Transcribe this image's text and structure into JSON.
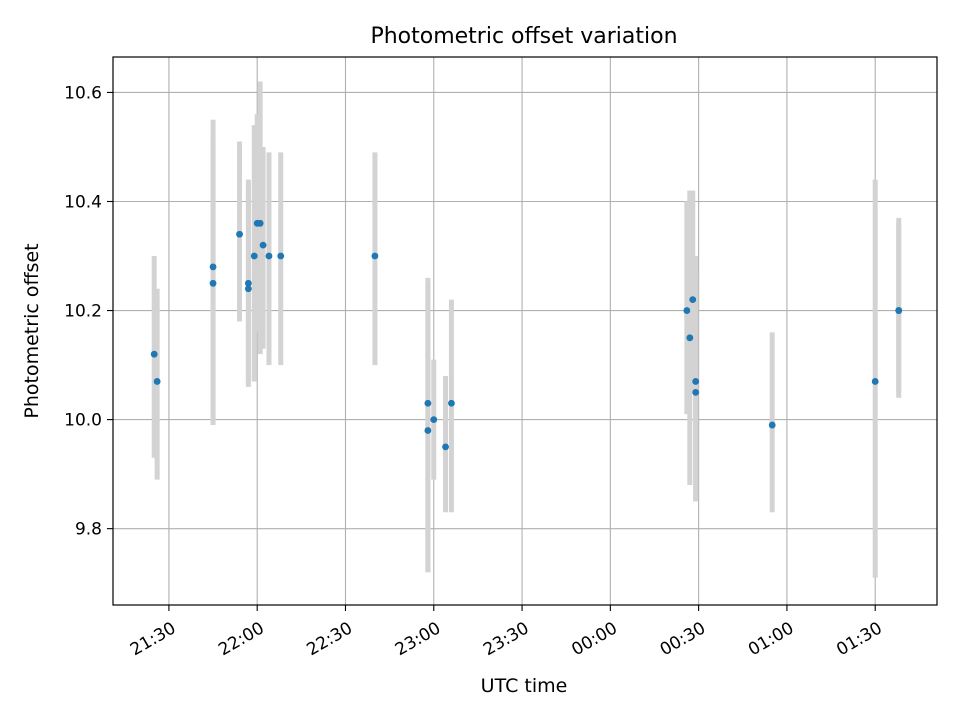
{
  "chart_data": {
    "type": "scatter",
    "title": "Photometric offset variation",
    "xlabel": "UTC time",
    "ylabel": "Photometric offset",
    "x_axis": "time",
    "xlim": [
      "21:11",
      "01:51"
    ],
    "ylim": [
      9.66,
      10.665
    ],
    "grid": true,
    "x_ticks": [
      "21:30",
      "22:00",
      "22:30",
      "23:00",
      "23:30",
      "00:00",
      "00:30",
      "01:00",
      "01:30"
    ],
    "y_ticks": [
      "9.8",
      "10.0",
      "10.2",
      "10.4",
      "10.6"
    ],
    "colors": {
      "points": "#1f77b4",
      "error_bars": "#d3d3d3",
      "grid": "#b0b0b0"
    },
    "series": [
      {
        "points": [
          {
            "x": "21:25",
            "y": 10.12,
            "ylo": 9.93,
            "yhi": 10.3
          },
          {
            "x": "21:26",
            "y": 10.07,
            "ylo": 9.89,
            "yhi": 10.24
          },
          {
            "x": "21:45",
            "y": 10.28,
            "ylo": 10.0,
            "yhi": 10.55
          },
          {
            "x": "21:45",
            "y": 10.25,
            "ylo": 9.99,
            "yhi": 10.51
          },
          {
            "x": "21:54",
            "y": 10.34,
            "ylo": 10.18,
            "yhi": 10.51
          },
          {
            "x": "21:57",
            "y": 10.24,
            "ylo": 10.06,
            "yhi": 10.43
          },
          {
            "x": "21:57",
            "y": 10.25,
            "ylo": 10.07,
            "yhi": 10.44
          },
          {
            "x": "21:59",
            "y": 10.3,
            "ylo": 10.07,
            "yhi": 10.54
          },
          {
            "x": "22:00",
            "y": 10.36,
            "ylo": 10.16,
            "yhi": 10.56
          },
          {
            "x": "22:01",
            "y": 10.36,
            "ylo": 10.12,
            "yhi": 10.62
          },
          {
            "x": "22:02",
            "y": 10.32,
            "ylo": 10.13,
            "yhi": 10.5
          },
          {
            "x": "22:04",
            "y": 10.3,
            "ylo": 10.1,
            "yhi": 10.49
          },
          {
            "x": "22:08",
            "y": 10.3,
            "ylo": 10.1,
            "yhi": 10.49
          },
          {
            "x": "22:40",
            "y": 10.3,
            "ylo": 10.1,
            "yhi": 10.49
          },
          {
            "x": "22:58",
            "y": 10.03,
            "ylo": 9.72,
            "yhi": 10.26
          },
          {
            "x": "22:58",
            "y": 9.98,
            "ylo": 9.72,
            "yhi": 10.25
          },
          {
            "x": "23:00",
            "y": 10.0,
            "ylo": 9.89,
            "yhi": 10.11
          },
          {
            "x": "23:04",
            "y": 9.95,
            "ylo": 9.83,
            "yhi": 10.08
          },
          {
            "x": "23:06",
            "y": 10.03,
            "ylo": 9.83,
            "yhi": 10.22
          },
          {
            "x": "00:26",
            "y": 10.2,
            "ylo": 10.01,
            "yhi": 10.4
          },
          {
            "x": "00:27",
            "y": 10.15,
            "ylo": 9.88,
            "yhi": 10.42
          },
          {
            "x": "00:28",
            "y": 10.22,
            "ylo": 10.05,
            "yhi": 10.42
          },
          {
            "x": "00:29",
            "y": 10.07,
            "ylo": 9.85,
            "yhi": 10.3
          },
          {
            "x": "00:29",
            "y": 10.05,
            "ylo": 9.85,
            "yhi": 10.26
          },
          {
            "x": "00:55",
            "y": 9.99,
            "ylo": 9.83,
            "yhi": 10.16
          },
          {
            "x": "01:30",
            "y": 10.07,
            "ylo": 9.71,
            "yhi": 10.44
          },
          {
            "x": "01:38",
            "y": 10.2,
            "ylo": 10.04,
            "yhi": 10.37
          },
          {
            "x": "01:38",
            "y": 10.2,
            "ylo": 10.05,
            "yhi": 10.36
          }
        ]
      }
    ]
  }
}
